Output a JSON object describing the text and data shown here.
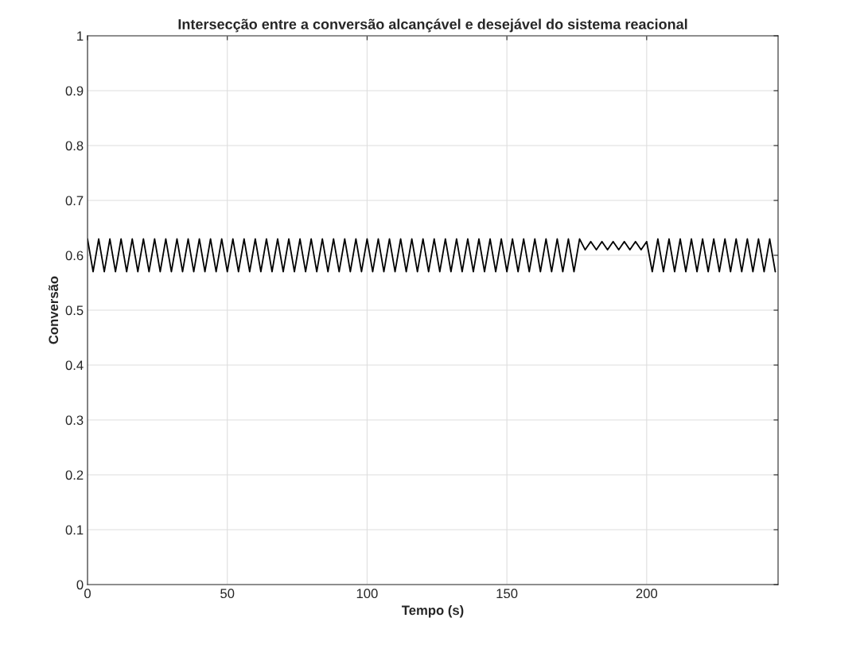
{
  "chart_data": {
    "type": "line",
    "title": "Intersecção entre a conversão alcançável e desejável do sistema reacional",
    "xlabel": "Tempo (s)",
    "ylabel": "Conversão",
    "x": [
      0,
      2,
      4,
      6,
      8,
      10,
      12,
      14,
      16,
      18,
      20,
      22,
      24,
      26,
      28,
      30,
      32,
      34,
      36,
      38,
      40,
      42,
      44,
      46,
      48,
      50,
      52,
      54,
      56,
      58,
      60,
      62,
      64,
      66,
      68,
      70,
      72,
      74,
      76,
      78,
      80,
      82,
      84,
      86,
      88,
      90,
      92,
      94,
      96,
      98,
      100,
      102,
      104,
      106,
      108,
      110,
      112,
      114,
      116,
      118,
      120,
      122,
      124,
      126,
      128,
      130,
      132,
      134,
      136,
      138,
      140,
      142,
      144,
      146,
      148,
      150,
      152,
      154,
      156,
      158,
      160,
      162,
      164,
      166,
      168,
      170,
      172,
      174,
      176,
      178,
      180,
      182,
      184,
      186,
      188,
      190,
      192,
      194,
      196,
      198,
      200,
      202,
      204,
      206,
      208,
      210,
      212,
      214,
      216,
      218,
      220,
      222,
      224,
      226,
      228,
      230,
      232,
      234,
      236,
      238,
      240,
      242,
      244,
      246
    ],
    "series": [
      {
        "color": "#000000",
        "values": [
          0.63,
          0.57,
          0.63,
          0.57,
          0.63,
          0.57,
          0.63,
          0.57,
          0.63,
          0.57,
          0.63,
          0.57,
          0.63,
          0.57,
          0.63,
          0.57,
          0.63,
          0.57,
          0.63,
          0.57,
          0.63,
          0.57,
          0.63,
          0.57,
          0.63,
          0.57,
          0.63,
          0.57,
          0.63,
          0.57,
          0.63,
          0.57,
          0.63,
          0.57,
          0.63,
          0.57,
          0.63,
          0.57,
          0.63,
          0.57,
          0.63,
          0.57,
          0.63,
          0.57,
          0.63,
          0.57,
          0.63,
          0.57,
          0.63,
          0.57,
          0.63,
          0.57,
          0.63,
          0.57,
          0.63,
          0.57,
          0.63,
          0.57,
          0.63,
          0.57,
          0.63,
          0.57,
          0.63,
          0.57,
          0.63,
          0.57,
          0.63,
          0.57,
          0.63,
          0.57,
          0.63,
          0.57,
          0.63,
          0.57,
          0.63,
          0.57,
          0.63,
          0.57,
          0.63,
          0.57,
          0.63,
          0.57,
          0.63,
          0.57,
          0.63,
          0.57,
          0.63,
          0.57,
          0.63,
          0.61,
          0.625,
          0.61,
          0.625,
          0.61,
          0.625,
          0.61,
          0.625,
          0.61,
          0.625,
          0.61,
          0.625,
          0.57,
          0.63,
          0.57,
          0.63,
          0.57,
          0.63,
          0.57,
          0.63,
          0.57,
          0.63,
          0.57,
          0.63,
          0.57,
          0.63,
          0.57,
          0.63,
          0.57,
          0.63,
          0.57,
          0.63,
          0.57,
          0.63,
          0.57
        ]
      }
    ],
    "xlim": [
      0,
      247
    ],
    "xticks": [
      0,
      50,
      100,
      150,
      200
    ],
    "ylim": [
      0,
      1
    ],
    "yticks": [
      0,
      0.1,
      0.2,
      0.3,
      0.4,
      0.5,
      0.6,
      0.7,
      0.8,
      0.9,
      1
    ],
    "grid": true,
    "marker": "none",
    "line_style": "solid"
  }
}
